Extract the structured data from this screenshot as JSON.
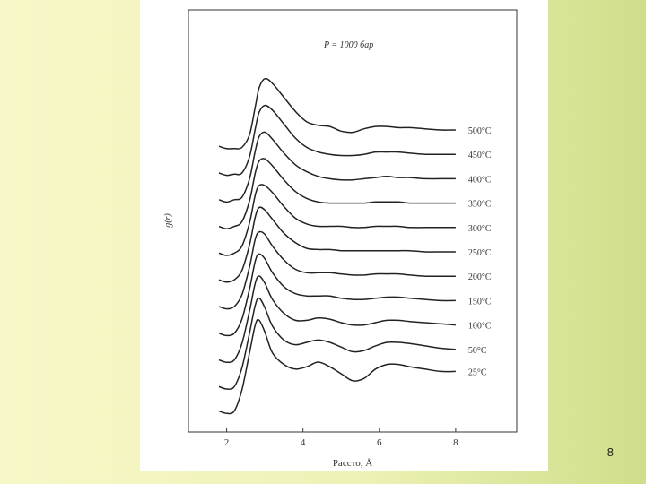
{
  "slide": {
    "page_number": "8"
  },
  "chart_data": {
    "type": "line",
    "title": "",
    "annotation": "P = 1000 бар",
    "xlabel": "Расстояние, Å",
    "xlabel_visible": "Рассто, Å",
    "ylabel": "g(r)",
    "xlim": [
      1.0,
      9.6
    ],
    "x_ticks": [
      2,
      4,
      6,
      8
    ],
    "y_ticks": [],
    "grid": false,
    "legend": "labels at right end of each curve",
    "vertical_offset_note": "curves are stacked with a constant vertical offset; y-axis has no numeric scale",
    "series": [
      {
        "name": "25°C",
        "x": [
          1.8,
          2.0,
          2.2,
          2.4,
          2.6,
          2.75,
          2.85,
          3.0,
          3.2,
          3.5,
          3.8,
          4.1,
          4.4,
          4.7,
          5.0,
          5.3,
          5.6,
          5.9,
          6.2,
          6.5,
          6.8,
          7.2,
          7.6,
          8.0
        ],
        "y": [
          -1.6,
          -1.7,
          -1.6,
          -0.7,
          0.9,
          2.1,
          2.3,
          1.8,
          0.9,
          0.4,
          0.2,
          0.3,
          0.5,
          0.3,
          0.0,
          -0.3,
          -0.2,
          0.2,
          0.4,
          0.4,
          0.3,
          0.2,
          0.1,
          0.1
        ]
      },
      {
        "name": "50°C",
        "x": [
          1.8,
          2.0,
          2.2,
          2.4,
          2.6,
          2.75,
          2.85,
          3.0,
          3.2,
          3.5,
          3.8,
          4.1,
          4.4,
          4.7,
          5.0,
          5.3,
          5.6,
          5.9,
          6.2,
          6.5,
          6.8,
          7.2,
          7.6,
          8.0
        ],
        "y": [
          -1.6,
          -1.7,
          -1.6,
          -0.8,
          0.7,
          1.9,
          2.2,
          1.8,
          1.0,
          0.4,
          0.2,
          0.3,
          0.4,
          0.3,
          0.1,
          -0.1,
          -0.05,
          0.15,
          0.3,
          0.3,
          0.25,
          0.15,
          0.05,
          0.0
        ]
      },
      {
        "name": "100°C",
        "x": [
          1.8,
          2.0,
          2.2,
          2.4,
          2.6,
          2.75,
          2.85,
          3.0,
          3.2,
          3.5,
          3.8,
          4.1,
          4.4,
          4.7,
          5.0,
          5.3,
          5.6,
          5.9,
          6.2,
          6.5,
          6.8,
          7.2,
          7.6,
          8.0
        ],
        "y": [
          -1.5,
          -1.6,
          -1.5,
          -0.8,
          0.6,
          1.8,
          2.1,
          1.8,
          1.1,
          0.5,
          0.2,
          0.2,
          0.3,
          0.25,
          0.1,
          0.0,
          0.0,
          0.1,
          0.2,
          0.2,
          0.15,
          0.1,
          0.05,
          0.0
        ]
      },
      {
        "name": "150°C",
        "x": [
          1.8,
          2.0,
          2.2,
          2.4,
          2.6,
          2.75,
          2.85,
          3.0,
          3.2,
          3.5,
          3.8,
          4.1,
          4.4,
          4.7,
          5.0,
          5.3,
          5.6,
          5.9,
          6.2,
          6.5,
          6.8,
          7.2,
          7.6,
          8.0
        ],
        "y": [
          -1.4,
          -1.5,
          -1.4,
          -0.8,
          0.5,
          1.7,
          2.0,
          1.8,
          1.2,
          0.6,
          0.3,
          0.2,
          0.2,
          0.2,
          0.1,
          0.05,
          0.05,
          0.1,
          0.15,
          0.15,
          0.1,
          0.05,
          0.0,
          0.0
        ]
      },
      {
        "name": "200°C",
        "x": [
          1.8,
          2.0,
          2.2,
          2.4,
          2.6,
          2.75,
          2.85,
          3.0,
          3.2,
          3.5,
          3.8,
          4.1,
          4.4,
          4.7,
          5.0,
          5.3,
          5.6,
          5.9,
          6.2,
          6.5,
          6.8,
          7.2,
          7.6,
          8.0
        ],
        "y": [
          -1.3,
          -1.4,
          -1.3,
          -0.8,
          0.4,
          1.6,
          1.9,
          1.8,
          1.3,
          0.7,
          0.3,
          0.15,
          0.15,
          0.15,
          0.1,
          0.05,
          0.05,
          0.1,
          0.1,
          0.1,
          0.05,
          0.0,
          0.0,
          0.0
        ]
      },
      {
        "name": "250°C",
        "x": [
          1.8,
          2.0,
          2.2,
          2.4,
          2.6,
          2.75,
          2.85,
          3.0,
          3.2,
          3.5,
          3.8,
          4.1,
          4.4,
          4.7,
          5.0,
          5.3,
          5.6,
          5.9,
          6.2,
          6.5,
          6.8,
          7.2,
          7.6,
          8.0
        ],
        "y": [
          -1.2,
          -1.3,
          -1.2,
          -0.8,
          0.3,
          1.5,
          1.9,
          1.8,
          1.4,
          0.8,
          0.4,
          0.15,
          0.1,
          0.1,
          0.05,
          0.05,
          0.05,
          0.05,
          0.05,
          0.05,
          0.05,
          0.0,
          0.0,
          0.0
        ]
      },
      {
        "name": "300°C",
        "x": [
          1.8,
          2.0,
          2.2,
          2.4,
          2.6,
          2.75,
          2.85,
          3.0,
          3.2,
          3.5,
          3.8,
          4.1,
          4.4,
          4.7,
          5.0,
          5.3,
          5.6,
          5.9,
          6.2,
          6.5,
          6.8,
          7.2,
          7.6,
          8.0
        ],
        "y": [
          -1.1,
          -1.2,
          -1.1,
          -0.8,
          0.2,
          1.4,
          1.8,
          1.8,
          1.5,
          0.9,
          0.4,
          0.15,
          0.05,
          0.05,
          0.05,
          0.0,
          0.0,
          0.05,
          0.05,
          0.05,
          0.0,
          0.0,
          0.0,
          0.0
        ]
      },
      {
        "name": "350°C",
        "x": [
          1.8,
          2.0,
          2.2,
          2.4,
          2.6,
          2.75,
          2.85,
          3.0,
          3.2,
          3.5,
          3.8,
          4.1,
          4.4,
          4.7,
          5.0,
          5.3,
          5.6,
          5.9,
          6.2,
          6.5,
          6.8,
          7.2,
          7.6,
          8.0
        ],
        "y": [
          -1.0,
          -1.1,
          -1.0,
          -0.8,
          0.1,
          1.3,
          1.8,
          1.9,
          1.6,
          1.0,
          0.5,
          0.2,
          0.05,
          0.0,
          0.0,
          0.0,
          0.0,
          0.05,
          0.05,
          0.05,
          0.0,
          0.0,
          0.0,
          0.0
        ]
      },
      {
        "name": "400°C",
        "x": [
          1.8,
          2.0,
          2.2,
          2.4,
          2.6,
          2.75,
          2.85,
          3.0,
          3.2,
          3.5,
          3.8,
          4.1,
          4.4,
          4.7,
          5.0,
          5.3,
          5.6,
          5.9,
          6.2,
          6.5,
          6.8,
          7.2,
          7.6,
          8.0
        ],
        "y": [
          -0.9,
          -1.0,
          -0.9,
          -0.8,
          0.0,
          1.2,
          1.8,
          2.0,
          1.7,
          1.1,
          0.6,
          0.3,
          0.1,
          0.0,
          -0.05,
          -0.05,
          0.0,
          0.05,
          0.1,
          0.05,
          0.05,
          0.0,
          0.0,
          0.0
        ]
      },
      {
        "name": "450°C",
        "x": [
          1.8,
          2.0,
          2.2,
          2.4,
          2.6,
          2.75,
          2.85,
          3.0,
          3.2,
          3.5,
          3.8,
          4.1,
          4.4,
          4.7,
          5.0,
          5.3,
          5.6,
          5.9,
          6.2,
          6.5,
          6.8,
          7.2,
          7.6,
          8.0
        ],
        "y": [
          -0.8,
          -0.9,
          -0.85,
          -0.8,
          -0.1,
          1.1,
          1.8,
          2.1,
          1.9,
          1.3,
          0.7,
          0.3,
          0.1,
          0.0,
          -0.05,
          -0.05,
          0.0,
          0.1,
          0.1,
          0.1,
          0.05,
          0.0,
          0.0,
          0.0
        ]
      },
      {
        "name": "500°C",
        "x": [
          1.8,
          2.0,
          2.2,
          2.4,
          2.6,
          2.75,
          2.85,
          3.0,
          3.2,
          3.5,
          3.8,
          4.1,
          4.4,
          4.7,
          5.0,
          5.3,
          5.6,
          5.9,
          6.2,
          6.5,
          6.8,
          7.2,
          7.6,
          8.0
        ],
        "y": [
          -0.7,
          -0.8,
          -0.8,
          -0.75,
          -0.2,
          1.0,
          1.8,
          2.2,
          2.0,
          1.4,
          0.8,
          0.35,
          0.2,
          0.15,
          -0.05,
          -0.1,
          0.05,
          0.15,
          0.15,
          0.1,
          0.1,
          0.05,
          0.0,
          0.0
        ]
      }
    ]
  }
}
